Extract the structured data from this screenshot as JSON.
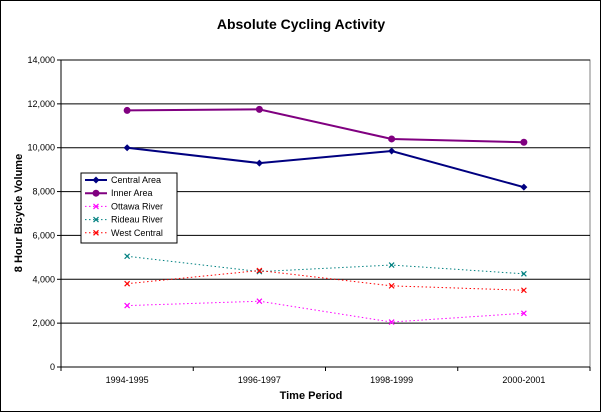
{
  "chart_data": {
    "type": "line",
    "title": "Absolute Cycling Activity",
    "xlabel": "Time Period",
    "ylabel": "8 Hour Bicycle Volume",
    "categories": [
      "1994-1995",
      "1996-1997",
      "1998-1999",
      "2000-2001"
    ],
    "ylim": [
      0,
      14000
    ],
    "yticks": [
      "0",
      "2,000",
      "4,000",
      "6,000",
      "8,000",
      "10,000",
      "12,000",
      "14,000"
    ],
    "ytick_values": [
      0,
      2000,
      4000,
      6000,
      8000,
      10000,
      12000,
      14000
    ],
    "grid": "horizontal",
    "legend_position": "left",
    "series": [
      {
        "name": "Central Area",
        "values": [
          10000,
          9300,
          9850,
          8200
        ],
        "color": "#000080",
        "style": "solid",
        "marker": "diamond"
      },
      {
        "name": "Inner Area",
        "values": [
          11700,
          11750,
          10400,
          10250
        ],
        "color": "#800080",
        "style": "solid",
        "marker": "circle"
      },
      {
        "name": "Ottawa River",
        "values": [
          2800,
          3000,
          2050,
          2450
        ],
        "color": "#ff00ff",
        "style": "dotted",
        "marker": "x"
      },
      {
        "name": "Rideau River",
        "values": [
          5050,
          4350,
          4650,
          4250
        ],
        "color": "#008080",
        "style": "dotted",
        "marker": "x"
      },
      {
        "name": "West Central",
        "values": [
          3800,
          4400,
          3700,
          3500
        ],
        "color": "#ff0000",
        "style": "dotted",
        "marker": "x"
      }
    ]
  }
}
